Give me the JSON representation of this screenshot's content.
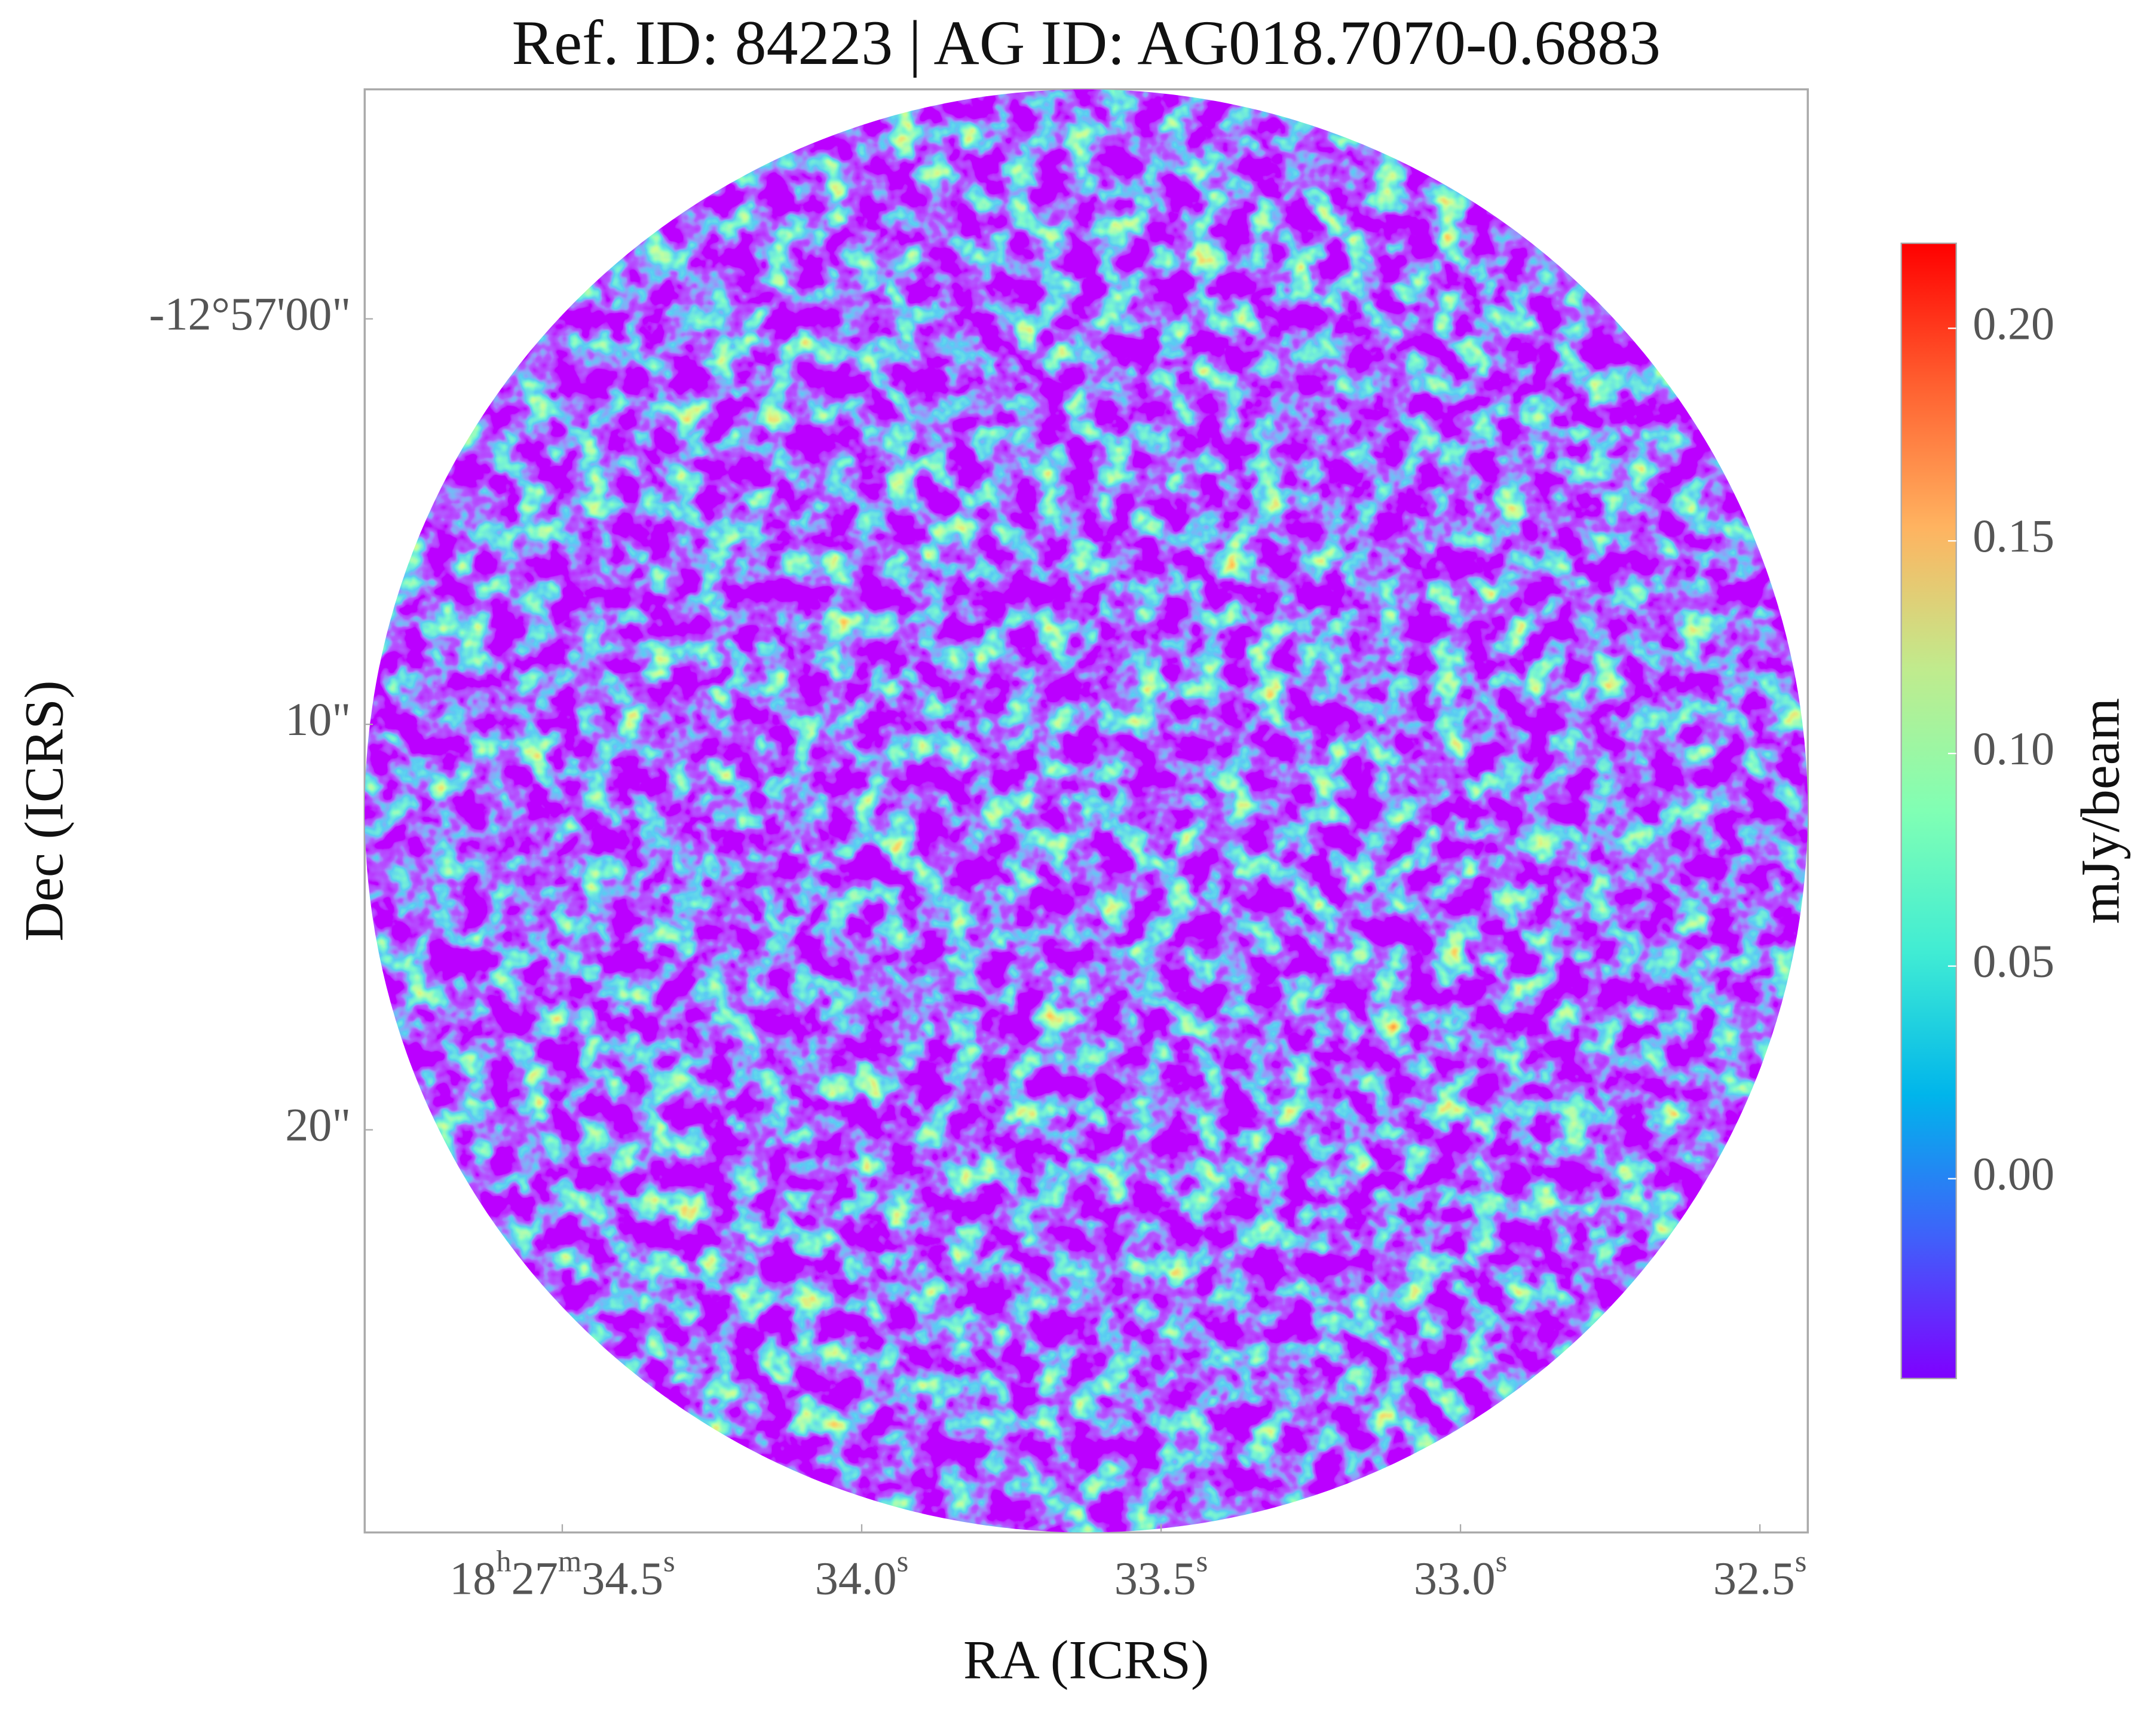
{
  "chart_data": {
    "type": "image",
    "title": "Ref. ID: 84223 | AG ID: AG018.7070-0.6883",
    "xlabel": "RA (ICRS)",
    "ylabel": "Dec (ICRS)",
    "xlim": [
      34.83,
      32.42
    ],
    "xticks": [
      {
        "value": 34.5,
        "label": "18h27m34.5s"
      },
      {
        "value": 34.0,
        "label": "34.0s"
      },
      {
        "value": 33.5,
        "label": "33.5s"
      },
      {
        "value": 33.0,
        "label": "33.0s"
      },
      {
        "value": 32.5,
        "label": "32.5s"
      }
    ],
    "ylim": [
      29.93,
      -5.66
    ],
    "yticks": [
      {
        "value": 0,
        "label": "-12°57'00\""
      },
      {
        "value": 10,
        "label": "10\""
      },
      {
        "value": 20,
        "label": "20\""
      }
    ],
    "colorbar": {
      "label": "mJy/beam",
      "colormap": "rainbow",
      "clim": [
        -0.047,
        0.22
      ],
      "ticks": [
        {
          "value": 0,
          "label": "0.00"
        },
        0.05,
        {
          "value": 0.1,
          "label": "0.10"
        },
        0.15,
        {
          "value": 0.2,
          "label": "0.20"
        }
      ]
    }
  }
}
